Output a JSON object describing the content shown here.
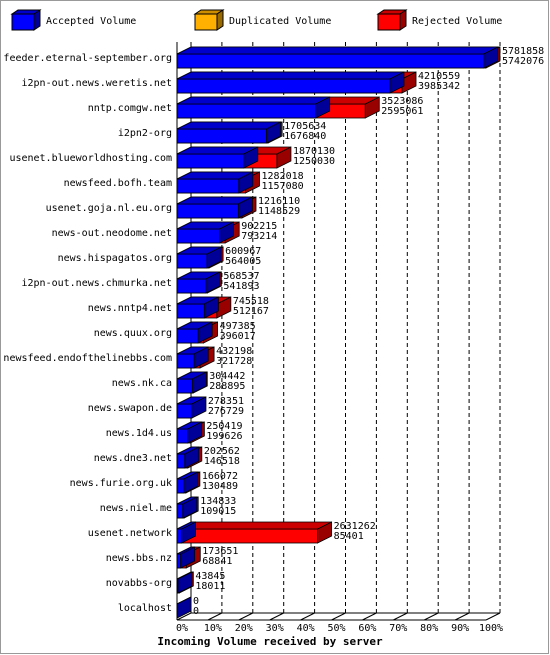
{
  "chart_data": {
    "type": "bar",
    "orientation": "horizontal",
    "x_label": "Incoming Volume received by server",
    "legend": [
      {
        "name": "Accepted Volume",
        "color": "#0000ff"
      },
      {
        "name": "Duplicated Volume",
        "color": "#ffb000"
      },
      {
        "name": "Rejected Volume",
        "color": "#ff0000"
      }
    ],
    "categories": [
      "feeder.eternal-september.org",
      "i2pn-out.news.weretis.net",
      "nntp.comgw.net",
      "i2pn2-org",
      "usenet.blueworldhosting.com",
      "newsfeed.bofh.team",
      "usenet.goja.nl.eu.org",
      "news-out.neodome.net",
      "news.hispagatos.org",
      "i2pn-out.news.chmurka.net",
      "news.nntp4.net",
      "news.quux.org",
      "newsfeed.endofthelinebbs.com",
      "news.nk.ca",
      "news.swapon.de",
      "news.1d4.us",
      "news.dne3.net",
      "news.furie.org.uk",
      "news.niel.me",
      "usenet.network",
      "news.bbs.nz",
      "novabbs-org",
      "localhost"
    ],
    "totals": [
      5781858,
      4210559,
      3523086,
      1705634,
      1870130,
      1282018,
      1216110,
      902215,
      600967,
      568537,
      745518,
      497385,
      432198,
      304442,
      278351,
      250419,
      202562,
      166072,
      134833,
      2631262,
      173651,
      43845,
      0
    ],
    "accepted": [
      5742076,
      3985342,
      2595061,
      1676840,
      1250030,
      1157080,
      1148529,
      793214,
      564005,
      541893,
      512167,
      396017,
      321728,
      288895,
      276729,
      199626,
      146518,
      130489,
      109015,
      85401,
      68841,
      18011,
      0
    ],
    "xlim": [
      0,
      5781858
    ],
    "xticks": [
      {
        "value": 0,
        "label": "0%"
      },
      {
        "value": 578185.8,
        "label": "10%"
      },
      {
        "value": 1156371.6,
        "label": "20%"
      },
      {
        "value": 1734557.4,
        "label": "30%"
      },
      {
        "value": 2312743.2,
        "label": "40%"
      },
      {
        "value": 2890929,
        "label": "50%"
      },
      {
        "value": 3469114.8,
        "label": "60%"
      },
      {
        "value": 4047300.6,
        "label": "70%"
      },
      {
        "value": 4625486.4,
        "label": "80%"
      },
      {
        "value": 5203672.2,
        "label": "90%"
      },
      {
        "value": 5781858,
        "label": "100%"
      }
    ],
    "grid": true
  }
}
